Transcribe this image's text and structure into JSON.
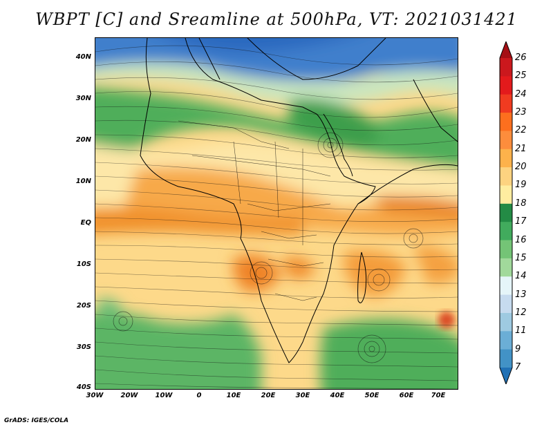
{
  "title": "WBPT [C] and Sreamline at 500hPa, VT: 2021031421",
  "footer": "GrADS: IGES/COLA",
  "y_axis_labels": [
    "40N",
    "30N",
    "20N",
    "10N",
    "EQ",
    "10S",
    "20S",
    "30S",
    "40S"
  ],
  "x_axis_labels": [
    "30W",
    "20W",
    "10W",
    "0",
    "10E",
    "20E",
    "30E",
    "40E",
    "50E",
    "60E",
    "70E"
  ],
  "colorbar": {
    "labels": [
      "26",
      "25",
      "24",
      "23",
      "22",
      "21",
      "20",
      "19",
      "18",
      "17",
      "16",
      "15",
      "14",
      "13",
      "12",
      "11",
      "9",
      "7"
    ],
    "colors": [
      "#a50f15",
      "#cb181d",
      "#e31a1c",
      "#f03b20",
      "#fd6f1e",
      "#fd8d3c",
      "#fdb24b",
      "#fdd380",
      "#ffeda0",
      "#238b45",
      "#41ab5d",
      "#74c476",
      "#a1d99b",
      "#e5f5f9",
      "#c6dbef",
      "#9ecae1",
      "#6baed6",
      "#4292c6",
      "#2171b5"
    ]
  },
  "legend_colors": {
    "land_border": "#000000",
    "streamline": "#000000"
  }
}
